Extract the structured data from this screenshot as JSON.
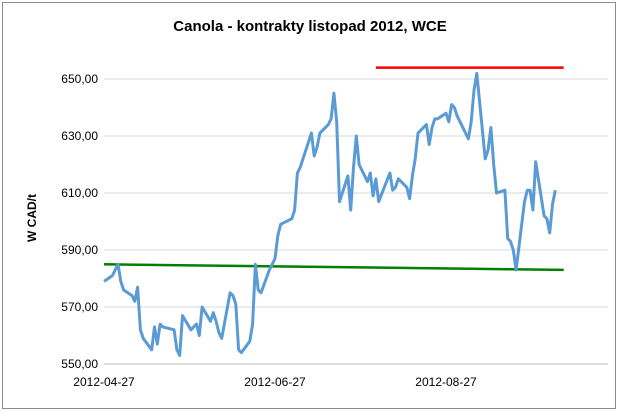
{
  "chart_data": {
    "type": "line",
    "title": "Canola - kontrakty listopad 2012, WCE",
    "xlabel": "",
    "ylabel": "W CAD/t",
    "ylim": [
      550,
      650
    ],
    "yticks": [
      "550,00",
      "570,00",
      "590,00",
      "610,00",
      "630,00",
      "650,00"
    ],
    "xticks": [
      {
        "label": "2012-04-27",
        "date": "2012-04-27"
      },
      {
        "label": "2012-06-27",
        "date": "2012-06-27"
      },
      {
        "label": "2012-08-27",
        "date": "2012-08-27"
      }
    ],
    "xrange": [
      "2012-04-27",
      "2012-10-08"
    ],
    "grid": "horizontal",
    "legend": "none",
    "series": [
      {
        "color": "#5b9bd5",
        "x": [
          "2012-04-27",
          "2012-04-30",
          "2012-05-01",
          "2012-05-02",
          "2012-05-03",
          "2012-05-04",
          "2012-05-07",
          "2012-05-08",
          "2012-05-09",
          "2012-05-10",
          "2012-05-11",
          "2012-05-14",
          "2012-05-15",
          "2012-05-16",
          "2012-05-17",
          "2012-05-18",
          "2012-05-22",
          "2012-05-23",
          "2012-05-24",
          "2012-05-25",
          "2012-05-28",
          "2012-05-29",
          "2012-05-30",
          "2012-05-31",
          "2012-06-01",
          "2012-06-04",
          "2012-06-05",
          "2012-06-06",
          "2012-06-07",
          "2012-06-08",
          "2012-06-11",
          "2012-06-12",
          "2012-06-13",
          "2012-06-14",
          "2012-06-15",
          "2012-06-18",
          "2012-06-19",
          "2012-06-20",
          "2012-06-21",
          "2012-06-22",
          "2012-06-25",
          "2012-06-26",
          "2012-06-27",
          "2012-06-28",
          "2012-06-29",
          "2012-07-03",
          "2012-07-04",
          "2012-07-05",
          "2012-07-06",
          "2012-07-09",
          "2012-07-10",
          "2012-07-11",
          "2012-07-12",
          "2012-07-13",
          "2012-07-16",
          "2012-07-17",
          "2012-07-18",
          "2012-07-19",
          "2012-07-20",
          "2012-07-23",
          "2012-07-24",
          "2012-07-25",
          "2012-07-26",
          "2012-07-27",
          "2012-07-30",
          "2012-07-31",
          "2012-08-01",
          "2012-08-02",
          "2012-08-03",
          "2012-08-07",
          "2012-08-08",
          "2012-08-09",
          "2012-08-10",
          "2012-08-13",
          "2012-08-14",
          "2012-08-15",
          "2012-08-16",
          "2012-08-17",
          "2012-08-20",
          "2012-08-21",
          "2012-08-22",
          "2012-08-23",
          "2012-08-24",
          "2012-08-27",
          "2012-08-28",
          "2012-08-29",
          "2012-08-30",
          "2012-08-31",
          "2012-09-04",
          "2012-09-05",
          "2012-09-06",
          "2012-09-07",
          "2012-09-10",
          "2012-09-11",
          "2012-09-12",
          "2012-09-13",
          "2012-09-14",
          "2012-09-17",
          "2012-09-18",
          "2012-09-19",
          "2012-09-20",
          "2012-09-21",
          "2012-09-24",
          "2012-09-25",
          "2012-09-26",
          "2012-09-27",
          "2012-09-28",
          "2012-10-01",
          "2012-10-02",
          "2012-10-03",
          "2012-10-04",
          "2012-10-05"
        ],
        "values": [
          579,
          581,
          583,
          585,
          579,
          576,
          574,
          572,
          577,
          562,
          559,
          555,
          563,
          557,
          564,
          563,
          562,
          555,
          553,
          567,
          562,
          563,
          564,
          560,
          570,
          565,
          568,
          565,
          561,
          559,
          575,
          574,
          571,
          555,
          554,
          558,
          564,
          585,
          576,
          575,
          583,
          585,
          587,
          595,
          599,
          601,
          604,
          617,
          619,
          628,
          631,
          623,
          626,
          631,
          634,
          636,
          645,
          635,
          607,
          616,
          604,
          619,
          630,
          620,
          614,
          617,
          609,
          615,
          607,
          617,
          611,
          612,
          615,
          612,
          608,
          616,
          622,
          631,
          634,
          627,
          633,
          636,
          636,
          638,
          635,
          641,
          640,
          637,
          629,
          635,
          646,
          652,
          622,
          625,
          633,
          620,
          610,
          611,
          594,
          593,
          590,
          583,
          607,
          611,
          611,
          604,
          621,
          602,
          601,
          596,
          606,
          611
        ]
      }
    ],
    "reference_lines": [
      {
        "color": "#ff0000",
        "x": [
          "2012-08-02",
          "2012-10-08"
        ],
        "values": [
          654,
          654
        ]
      },
      {
        "color": "#008000",
        "x": [
          "2012-04-27",
          "2012-10-08"
        ],
        "values": [
          585,
          583
        ]
      }
    ]
  }
}
